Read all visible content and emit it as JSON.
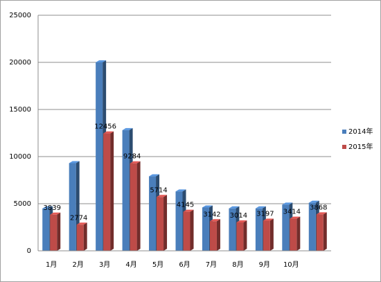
{
  "chart_data": {
    "type": "bar",
    "categories": [
      "1月",
      "2月",
      "3月",
      "4月",
      "5月",
      "6月",
      "7月",
      "8月",
      "9月",
      "10月",
      null
    ],
    "series": [
      {
        "name": "2014年",
        "color": "#4a7ebb",
        "values": [
          4500,
          9300,
          20000,
          12800,
          7900,
          6300,
          4600,
          4500,
          4500,
          4900,
          5100
        ]
      },
      {
        "name": "2015年",
        "color": "#be4b48",
        "values": [
          3839,
          2774,
          12456,
          9284,
          5714,
          4145,
          3142,
          3014,
          3197,
          3414,
          3868
        ],
        "data_labels": true
      }
    ],
    "ylim": [
      0,
      25000
    ],
    "yticks": [
      0,
      5000,
      10000,
      15000,
      20000,
      25000
    ],
    "grid": true,
    "legend": "right"
  }
}
